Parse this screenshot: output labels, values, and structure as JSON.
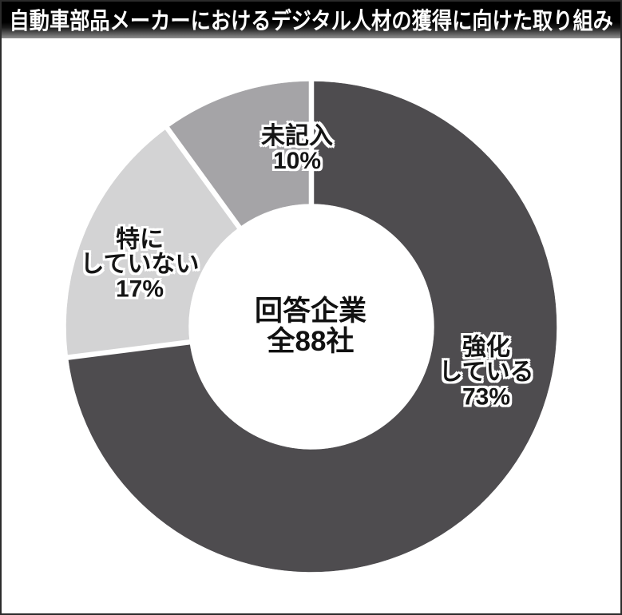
{
  "title": "自動車部品メーカーにおけるデジタル人材の獲得に向けた取り組み",
  "chart_data": {
    "type": "pie",
    "subtype": "donut",
    "title": "自動車部品メーカーにおけるデジタル人材の獲得に向けた取り組み",
    "start_angle_deg": 0,
    "direction": "clockwise",
    "divider_color": "#ffffff",
    "background_color": "#ffffff",
    "center_label": [
      "回答企業",
      "全88社"
    ],
    "segments": [
      {
        "label": "強化している",
        "value": 73,
        "unit": "%",
        "color": "#4e4c4f",
        "label_lines": [
          "強化",
          "している",
          "73%"
        ]
      },
      {
        "label": "特にしていない",
        "value": 17,
        "unit": "%",
        "color": "#d3d3d4",
        "label_lines": [
          "特に",
          "していない",
          "17%"
        ]
      },
      {
        "label": "未記入",
        "value": 10,
        "unit": "%",
        "color": "#a5a4a7",
        "label_lines": [
          "未記入",
          "10%"
        ]
      }
    ]
  }
}
